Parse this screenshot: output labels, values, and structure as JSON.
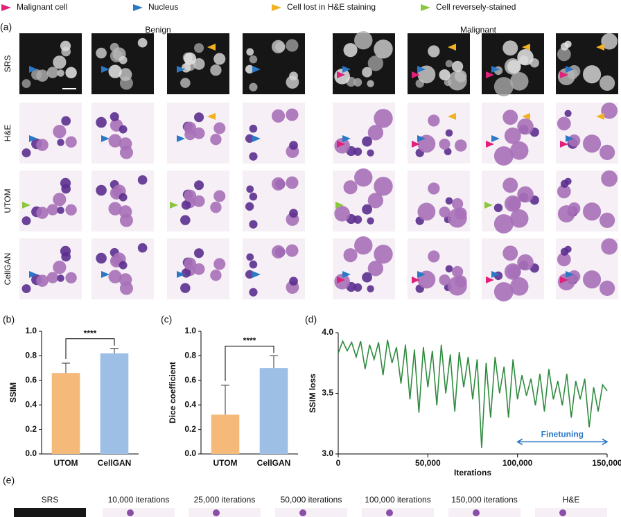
{
  "legend": [
    {
      "label": "Malignant cell",
      "color": "#e0207a"
    },
    {
      "label": "Nucleus",
      "color": "#2a78c6"
    },
    {
      "label": "Cell lost in H&E staining",
      "color": "#f2b120"
    },
    {
      "label": "Cell reversely-stained",
      "color": "#8cc63f"
    }
  ],
  "panel_labels": [
    "(a)",
    "(b)",
    "(c)",
    "(d)",
    "(e)"
  ],
  "groups": [
    "Benign",
    "Malignant"
  ],
  "row_labels": [
    "SRS",
    "H&E",
    "UTOM",
    "CellGAN"
  ],
  "bottom_labels": [
    "SRS",
    "10,000 iterations",
    "25,000 iterations",
    "50,000 iterations",
    "100,000 iterations",
    "150,000 iterations",
    "H&E"
  ],
  "chart_data": [
    {
      "type": "bar",
      "ylabel": "SSIM",
      "categories": [
        "UTOM",
        "CellGAN"
      ],
      "values": [
        0.66,
        0.82
      ],
      "errors": [
        0.08,
        0.04
      ],
      "colors": [
        "#f5b97a",
        "#9dbfe6"
      ],
      "significance": "****",
      "ylim": [
        0,
        1
      ],
      "yticks": [
        {
          "value": 0,
          "label": "0.0"
        },
        0.2,
        0.4,
        0.6,
        0.8,
        {
          "value": 1,
          "label": "1.0"
        }
      ]
    },
    {
      "type": "bar",
      "ylabel": "Dice coefficient",
      "categories": [
        "UTOM",
        "CellGAN"
      ],
      "values": [
        0.32,
        0.7
      ],
      "errors": [
        0.24,
        0.1
      ],
      "colors": [
        "#f5b97a",
        "#9dbfe6"
      ],
      "significance": "****",
      "ylim": [
        0,
        1
      ],
      "yticks": [
        {
          "value": 0,
          "label": "0.0"
        },
        0.2,
        0.4,
        0.6,
        0.8,
        {
          "value": 1,
          "label": "1.0"
        }
      ]
    },
    {
      "type": "line",
      "xlabel": "Iterations",
      "ylabel": "SSIM loss",
      "color": "#2e8b3e",
      "x": [
        0,
        2500,
        5000,
        7500,
        10000,
        12500,
        15000,
        17500,
        20000,
        22500,
        25000,
        27500,
        30000,
        32500,
        35000,
        37500,
        40000,
        42500,
        45000,
        47500,
        50000,
        52500,
        55000,
        57500,
        60000,
        62500,
        65000,
        67500,
        70000,
        72500,
        75000,
        77500,
        80000,
        82500,
        85000,
        87500,
        90000,
        92500,
        95000,
        97500,
        100000,
        102500,
        105000,
        107500,
        110000,
        112500,
        115000,
        117500,
        120000,
        122500,
        125000,
        127500,
        130000,
        132500,
        135000,
        137500,
        140000,
        142500,
        145000,
        147500,
        150000
      ],
      "values": [
        3.83,
        3.93,
        3.85,
        3.92,
        3.8,
        3.93,
        3.7,
        3.9,
        3.78,
        3.92,
        3.65,
        3.94,
        3.75,
        3.88,
        3.58,
        3.9,
        3.45,
        3.86,
        3.34,
        3.88,
        3.55,
        3.85,
        3.4,
        3.9,
        3.5,
        3.82,
        3.35,
        3.84,
        3.55,
        3.8,
        3.45,
        3.78,
        3.05,
        3.75,
        3.3,
        3.8,
        3.5,
        3.72,
        3.3,
        3.78,
        3.45,
        3.65,
        3.48,
        3.62,
        3.4,
        3.66,
        3.35,
        3.7,
        3.45,
        3.6,
        3.4,
        3.66,
        3.3,
        3.6,
        3.45,
        3.62,
        3.22,
        3.55,
        3.35,
        3.57,
        3.52
      ],
      "annotation": {
        "text": "Finetuning",
        "x_range": [
          100000,
          150000
        ],
        "y": 3.1
      },
      "xlim": [
        0,
        150000
      ],
      "xticks": [
        0,
        {
          "value": 50000,
          "label": "50,000"
        },
        {
          "value": 100000,
          "label": "100,000"
        },
        {
          "value": 150000,
          "label": "150,000"
        }
      ],
      "ylim": [
        3,
        4
      ],
      "yticks": [
        {
          "value": 3,
          "label": "3.0"
        },
        3.5,
        {
          "value": 4,
          "label": "4.0"
        }
      ]
    }
  ]
}
